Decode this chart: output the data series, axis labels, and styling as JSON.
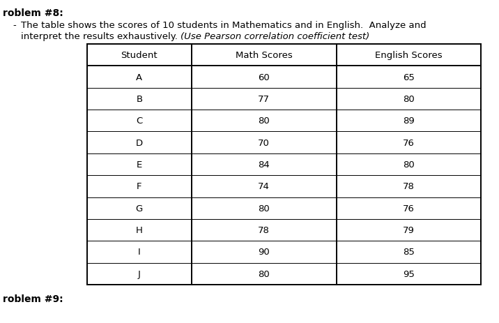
{
  "title_bold": "roblem #8:",
  "bullet_line1": "The table shows the scores of 10 students in Mathematics and in English.  Analyze and",
  "bullet_line2_normal": "interpret the results exhaustively. ",
  "bullet_line2_italic": "(Use Pearson correlation coefficient test)",
  "col_headers": [
    "Student",
    "Math Scores",
    "English Scores"
  ],
  "students": [
    "A",
    "B",
    "C",
    "D",
    "E",
    "F",
    "G",
    "H",
    "I",
    "J"
  ],
  "math_scores": [
    60,
    77,
    80,
    70,
    84,
    74,
    80,
    78,
    90,
    80
  ],
  "english_scores": [
    65,
    80,
    89,
    76,
    80,
    78,
    76,
    79,
    85,
    95
  ],
  "footer_bold": "roblem #9:",
  "bg_color": "#ffffff",
  "text_color": "#000000",
  "font_size": 9.5,
  "title_font_size": 10.0
}
